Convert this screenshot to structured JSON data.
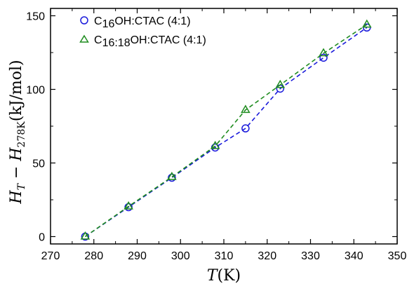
{
  "chart_data": {
    "type": "scatter",
    "xlabel": "T(K)",
    "ylabel": "H_T − H_278K (kJ/mol)",
    "xlim": [
      270,
      350
    ],
    "ylim": [
      -5,
      155
    ],
    "xticks": [
      270,
      280,
      290,
      300,
      310,
      320,
      330,
      340,
      350
    ],
    "yticks": [
      0,
      50,
      100,
      150
    ],
    "grid": false,
    "legend_position": "top-left",
    "series": [
      {
        "name": "C16OH:CTAC (4:1)",
        "color": "#1a1adb",
        "marker": "circle",
        "line": "dashed",
        "x": [
          278,
          288,
          298,
          308,
          315,
          323,
          333,
          343
        ],
        "y": [
          0,
          20,
          40,
          60.5,
          73.5,
          100.5,
          121.5,
          142
        ]
      },
      {
        "name": "C16:18OH:CTAC (4:1)",
        "color": "#1f8c1f",
        "marker": "triangle",
        "line": "dashed",
        "x": [
          278,
          288,
          298,
          308,
          315,
          323,
          333,
          343
        ],
        "y": [
          0,
          20.5,
          40.5,
          61.5,
          86,
          103,
          124.5,
          144
        ]
      }
    ]
  }
}
